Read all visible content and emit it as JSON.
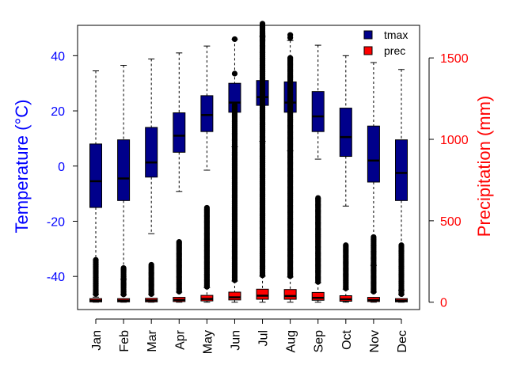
{
  "chart_data": {
    "type": "boxplot",
    "categories": [
      "Jan",
      "Feb",
      "Mar",
      "Apr",
      "May",
      "Jun",
      "Jul",
      "Aug",
      "Sep",
      "Oct",
      "Nov",
      "Dec"
    ],
    "ylabel": "Temperature (°C)",
    "ylabel_right": "Precipitation (mm)",
    "ylim": [
      -52,
      51
    ],
    "ylim_right": [
      -45,
      1700
    ],
    "yticks": [
      -40,
      -20,
      0,
      20,
      40
    ],
    "yticks_right": [
      0,
      500,
      1000,
      1500
    ],
    "legend": {
      "position": "top-right",
      "entries": [
        "tmax",
        "prec"
      ]
    },
    "colors": {
      "tmax": "#00008B",
      "prec": "#FF0000",
      "left_axis": "#0000FF",
      "right_axis": "#FF0000"
    },
    "series": [
      {
        "name": "tmax",
        "boxes": [
          {
            "whisker_low": -47.5,
            "q1": -15.0,
            "median": -5.5,
            "q3": 8.0,
            "whisker_high": 34.5
          },
          {
            "whisker_low": -41.0,
            "q1": -12.5,
            "median": -4.5,
            "q3": 9.5,
            "whisker_high": 36.5
          },
          {
            "whisker_low": -24.5,
            "q1": -4.0,
            "median": 1.3,
            "q3": 14.0,
            "whisker_high": 38.8
          },
          {
            "whisker_low": -9.2,
            "q1": 5.0,
            "median": 11.0,
            "q3": 19.3,
            "whisker_high": 41.0
          },
          {
            "whisker_low": -1.5,
            "q1": 12.5,
            "median": 18.5,
            "q3": 25.5,
            "whisker_high": 43.5
          },
          {
            "whisker_low": 7.0,
            "q1": 19.5,
            "median": 23.0,
            "q3": 30.0,
            "whisker_high": 46.0
          },
          {
            "whisker_low": 9.0,
            "q1": 22.0,
            "median": 25.0,
            "q3": 31.0,
            "whisker_high": 47.0
          },
          {
            "whisker_low": 5.5,
            "q1": 19.5,
            "median": 23.0,
            "q3": 30.5,
            "whisker_high": 45.5
          },
          {
            "whisker_low": 2.5,
            "q1": 12.5,
            "median": 18.0,
            "q3": 27.0,
            "whisker_high": 43.8
          },
          {
            "whisker_low": -14.5,
            "q1": 3.5,
            "median": 10.5,
            "q3": 21.0,
            "whisker_high": 40.0
          },
          {
            "whisker_low": -36.0,
            "q1": -5.8,
            "median": 2.0,
            "q3": 14.5,
            "whisker_high": 37.5
          },
          {
            "whisker_low": -45.0,
            "q1": -12.5,
            "median": -2.5,
            "q3": 9.5,
            "whisker_high": 35.0
          }
        ],
        "outliers": [
          [],
          [],
          [],
          [],
          [],
          [
            46,
            33.5,
            4
          ],
          [
            47.5,
            46.5,
            45.5,
            8.5,
            7,
            6.5
          ],
          [
            47.5,
            46.5
          ],
          [],
          [],
          [],
          []
        ]
      },
      {
        "name": "prec",
        "boxes": [
          {
            "whisker_low": 0,
            "q1": 2,
            "median": 10,
            "q3": 22,
            "whisker_high": 48
          },
          {
            "whisker_low": 0,
            "q1": 2,
            "median": 10,
            "q3": 22,
            "whisker_high": 45
          },
          {
            "whisker_low": 0,
            "q1": 2,
            "median": 11,
            "q3": 24,
            "whisker_high": 48
          },
          {
            "whisker_low": 0,
            "q1": 4,
            "median": 14,
            "q3": 30,
            "whisker_high": 62
          },
          {
            "whisker_low": 0,
            "q1": 8,
            "median": 20,
            "q3": 42,
            "whisker_high": 90
          },
          {
            "whisker_low": 0,
            "q1": 14,
            "median": 30,
            "q3": 62,
            "whisker_high": 130
          },
          {
            "whisker_low": 0,
            "q1": 18,
            "median": 40,
            "q3": 80,
            "whisker_high": 160
          },
          {
            "whisker_low": 0,
            "q1": 18,
            "median": 38,
            "q3": 78,
            "whisker_high": 155
          },
          {
            "whisker_low": 0,
            "q1": 12,
            "median": 27,
            "q3": 60,
            "whisker_high": 120
          },
          {
            "whisker_low": 0,
            "q1": 6,
            "median": 18,
            "q3": 40,
            "whisker_high": 80
          },
          {
            "whisker_low": 0,
            "q1": 4,
            "median": 13,
            "q3": 30,
            "whisker_high": 62
          },
          {
            "whisker_low": 0,
            "q1": 2,
            "median": 10,
            "q3": 22,
            "whisker_high": 48
          }
        ],
        "outlier_range": [
          [
            50,
            260
          ],
          [
            48,
            210
          ],
          [
            50,
            230
          ],
          [
            65,
            370
          ],
          [
            95,
            580
          ],
          [
            135,
            1210
          ],
          [
            165,
            1710
          ],
          [
            160,
            1500
          ],
          [
            125,
            640
          ],
          [
            85,
            350
          ],
          [
            65,
            400
          ],
          [
            50,
            350
          ]
        ],
        "outliers_extra": [
          [],
          [],
          [],
          [],
          [],
          [],
          [],
          [],
          [],
          [],
          [],
          []
        ]
      }
    ]
  }
}
